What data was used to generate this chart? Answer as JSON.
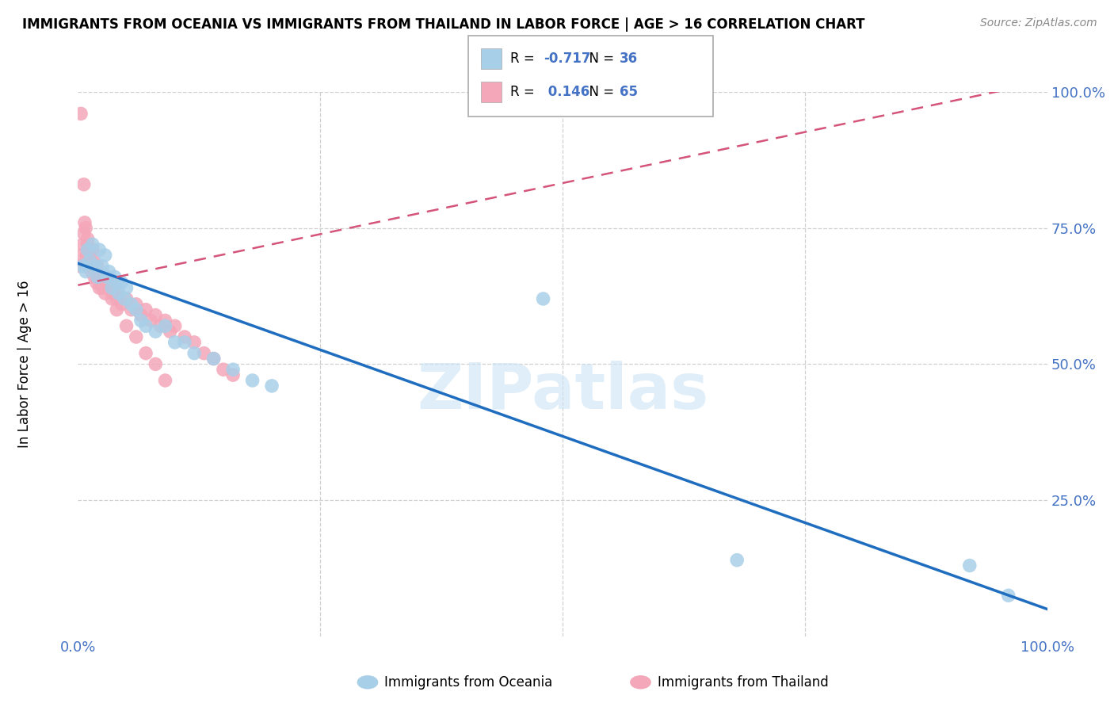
{
  "title": "IMMIGRANTS FROM OCEANIA VS IMMIGRANTS FROM THAILAND IN LABOR FORCE | AGE > 16 CORRELATION CHART",
  "source": "Source: ZipAtlas.com",
  "ylabel": "In Labor Force | Age > 16",
  "watermark": "ZIPatlas",
  "legend_blue_r": "-0.717",
  "legend_blue_n": "36",
  "legend_pink_r": "0.146",
  "legend_pink_n": "65",
  "xlim": [
    0.0,
    1.0
  ],
  "ylim": [
    0.0,
    1.0
  ],
  "blue_color": "#a8cfe8",
  "pink_color": "#f4a7b9",
  "blue_line_color": "#1f6dbf",
  "pink_line_color": "#d4547a",
  "legend_label_blue": "Immigrants from Oceania",
  "legend_label_pink": "Immigrants from Thailand",
  "blue_line_x0": 0.0,
  "blue_line_y0": 0.685,
  "blue_line_x1": 1.0,
  "blue_line_y1": 0.05,
  "pink_line_x0": 0.0,
  "pink_line_y0": 0.645,
  "pink_line_x1": 1.0,
  "pink_line_y1": 1.02,
  "blue_scatter_x": [
    0.005,
    0.008,
    0.01,
    0.012,
    0.015,
    0.018,
    0.02,
    0.022,
    0.025,
    0.028,
    0.03,
    0.032,
    0.035,
    0.038,
    0.04,
    0.042,
    0.045,
    0.048,
    0.05,
    0.055,
    0.06,
    0.065,
    0.07,
    0.08,
    0.09,
    0.1,
    0.11,
    0.12,
    0.14,
    0.16,
    0.18,
    0.2,
    0.48,
    0.68,
    0.92,
    0.96
  ],
  "blue_scatter_y": [
    0.68,
    0.67,
    0.71,
    0.69,
    0.72,
    0.68,
    0.66,
    0.71,
    0.68,
    0.7,
    0.66,
    0.67,
    0.64,
    0.66,
    0.65,
    0.63,
    0.65,
    0.62,
    0.64,
    0.61,
    0.6,
    0.58,
    0.57,
    0.56,
    0.57,
    0.54,
    0.54,
    0.52,
    0.51,
    0.49,
    0.47,
    0.46,
    0.62,
    0.14,
    0.13,
    0.075
  ],
  "pink_scatter_x": [
    0.002,
    0.004,
    0.005,
    0.006,
    0.007,
    0.008,
    0.009,
    0.01,
    0.011,
    0.012,
    0.013,
    0.014,
    0.015,
    0.016,
    0.017,
    0.018,
    0.019,
    0.02,
    0.021,
    0.022,
    0.023,
    0.024,
    0.025,
    0.026,
    0.028,
    0.03,
    0.032,
    0.034,
    0.036,
    0.038,
    0.04,
    0.042,
    0.045,
    0.05,
    0.055,
    0.06,
    0.065,
    0.07,
    0.075,
    0.08,
    0.085,
    0.09,
    0.095,
    0.1,
    0.11,
    0.12,
    0.13,
    0.14,
    0.15,
    0.16,
    0.003,
    0.006,
    0.008,
    0.01,
    0.015,
    0.02,
    0.025,
    0.03,
    0.035,
    0.04,
    0.05,
    0.06,
    0.07,
    0.08,
    0.09
  ],
  "pink_scatter_y": [
    0.68,
    0.7,
    0.72,
    0.74,
    0.76,
    0.68,
    0.7,
    0.72,
    0.68,
    0.71,
    0.69,
    0.67,
    0.71,
    0.69,
    0.66,
    0.68,
    0.65,
    0.67,
    0.66,
    0.64,
    0.66,
    0.65,
    0.64,
    0.65,
    0.63,
    0.66,
    0.64,
    0.65,
    0.63,
    0.64,
    0.62,
    0.63,
    0.61,
    0.62,
    0.6,
    0.61,
    0.59,
    0.6,
    0.58,
    0.59,
    0.57,
    0.58,
    0.56,
    0.57,
    0.55,
    0.54,
    0.52,
    0.51,
    0.49,
    0.48,
    0.96,
    0.83,
    0.75,
    0.73,
    0.71,
    0.68,
    0.66,
    0.64,
    0.62,
    0.6,
    0.57,
    0.55,
    0.52,
    0.5,
    0.47
  ]
}
